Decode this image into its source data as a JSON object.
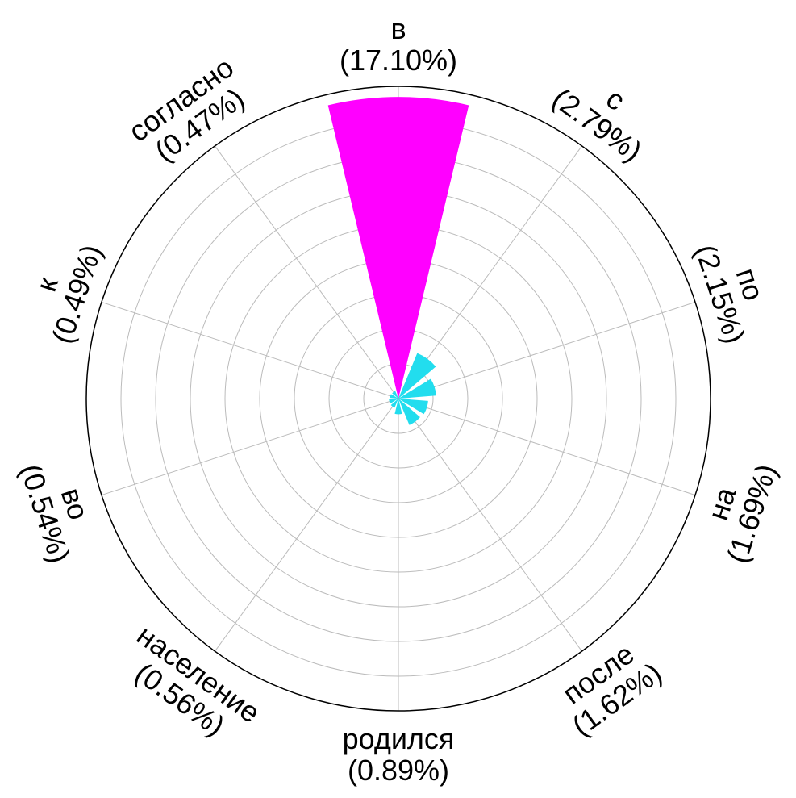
{
  "chart_data": {
    "type": "polar-bar",
    "title": "",
    "categories": [
      "в",
      "с",
      "по",
      "на",
      "после",
      "родился",
      "население",
      "во",
      "к",
      "согласно"
    ],
    "labels": [
      "(17.10%)",
      "(2.79%)",
      "(2.15%)",
      "(1.69%)",
      "(1.62%)",
      "(0.89%)",
      "(0.56%)",
      "(0.54%)",
      "(0.49%)",
      "(0.47%)"
    ],
    "values": [
      17.1,
      2.79,
      2.15,
      1.69,
      1.62,
      0.89,
      0.56,
      0.54,
      0.49,
      0.47
    ],
    "rmax": 17.7,
    "grid": true,
    "colors": {
      "highlight": "#ff00ff",
      "default": "#22ddee",
      "grid": "#bbbbbb",
      "frame": "#000000"
    }
  }
}
